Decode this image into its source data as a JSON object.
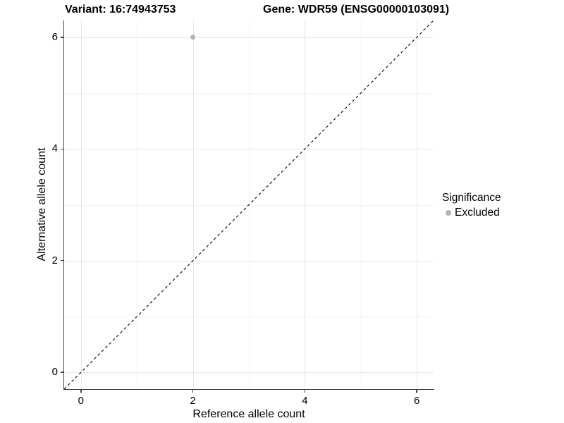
{
  "titles": {
    "left": "Variant: 16:74943753",
    "right": "Gene: WDR59 (ENSG00000103091)"
  },
  "chart_data": {
    "type": "scatter",
    "xlabel": "Reference allele count",
    "ylabel": "Alternative allele count",
    "xlim": [
      -0.3,
      6.3
    ],
    "ylim": [
      -0.3,
      6.3
    ],
    "x_ticks": [
      0,
      2,
      4,
      6
    ],
    "y_ticks": [
      0,
      2,
      4,
      6
    ],
    "x_minor_ticks": [
      1,
      3,
      5
    ],
    "y_minor_ticks": [
      1,
      3,
      5
    ],
    "grid": true,
    "series": [
      {
        "name": "Excluded",
        "points": [
          {
            "x": 2,
            "y": 6
          }
        ],
        "color": "#b3b3b3",
        "marker_radius": 3.5
      }
    ],
    "reference_line": {
      "description": "identity line y = x",
      "from": [
        -0.3,
        -0.3
      ],
      "to": [
        6.3,
        6.3
      ],
      "style": "dashed",
      "color": "#000000"
    },
    "legend": {
      "title": "Significance",
      "position": "right",
      "entries": [
        {
          "label": "Excluded",
          "color": "#b3b3b3",
          "marker": "circle"
        }
      ]
    }
  },
  "colors": {
    "background": "#ffffff",
    "grid_major": "#e5e5e5",
    "grid_minor": "#f2f2f2",
    "axis": "#404040",
    "text": "#000000",
    "point": "#b3b3b3"
  }
}
